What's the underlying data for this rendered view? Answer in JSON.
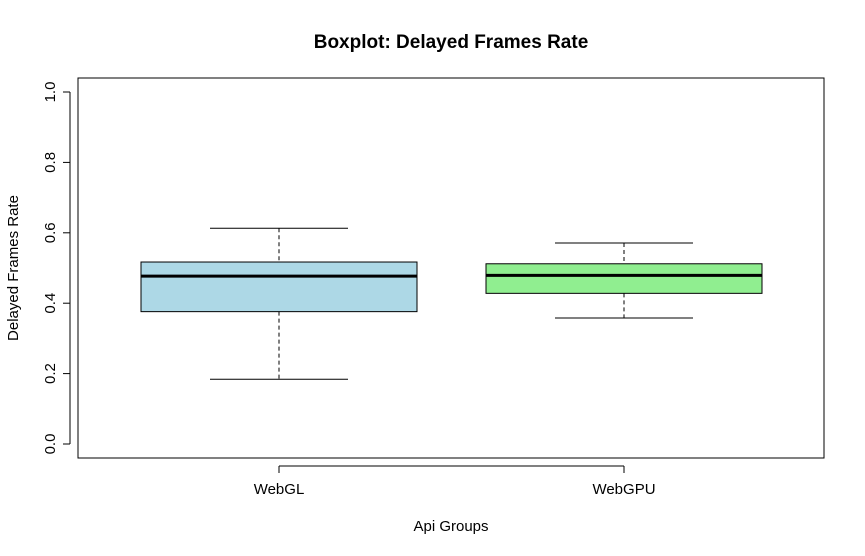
{
  "chart_data": {
    "type": "boxplot",
    "title": "Boxplot: Delayed Frames Rate",
    "xlabel": "Api Groups",
    "ylabel": "Delayed Frames Rate",
    "ylim": [
      0.0,
      1.0
    ],
    "yticks": [
      "0.0",
      "0.2",
      "0.4",
      "0.6",
      "0.8",
      "1.0"
    ],
    "categories": [
      "WebGL",
      "WebGPU"
    ],
    "boxes": [
      {
        "name": "WebGL",
        "whisker_low": 0.184,
        "q1": 0.376,
        "median": 0.477,
        "q3": 0.517,
        "whisker_high": 0.613,
        "color": "#add8e6"
      },
      {
        "name": "WebGPU",
        "whisker_low": 0.358,
        "q1": 0.428,
        "median": 0.479,
        "q3": 0.512,
        "whisker_high": 0.571,
        "color": "#90ee90"
      }
    ],
    "grid": false,
    "legend": "none"
  }
}
